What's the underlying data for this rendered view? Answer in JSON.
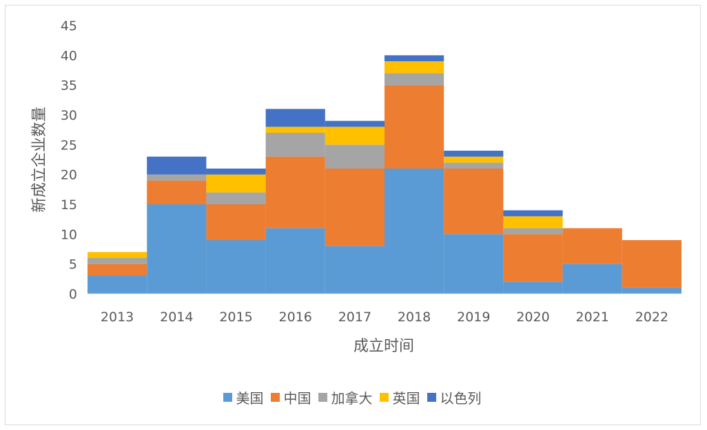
{
  "chart_data": {
    "type": "bar",
    "stacked": true,
    "categories": [
      "2013",
      "2014",
      "2015",
      "2016",
      "2017",
      "2018",
      "2019",
      "2020",
      "2021",
      "2022"
    ],
    "series": [
      {
        "name": "美国",
        "color": "#5b9bd5",
        "values": [
          3,
          15,
          9,
          11,
          8,
          21,
          10,
          2,
          5,
          1
        ]
      },
      {
        "name": "中国",
        "color": "#ed7d31",
        "values": [
          2,
          4,
          6,
          12,
          13,
          14,
          11,
          8,
          6,
          8
        ]
      },
      {
        "name": "加拿大",
        "color": "#a5a5a5",
        "values": [
          1,
          1,
          2,
          4,
          4,
          2,
          1,
          1,
          0,
          0
        ]
      },
      {
        "name": "英国",
        "color": "#ffc000",
        "values": [
          1,
          0,
          3,
          1,
          3,
          2,
          1,
          2,
          0,
          0
        ]
      },
      {
        "name": "以色列",
        "color": "#4472c4",
        "values": [
          0,
          3,
          1,
          3,
          1,
          1,
          1,
          1,
          0,
          0
        ]
      }
    ],
    "xlabel": "成立时间",
    "ylabel": "新成立企业数量",
    "ylim": [
      0,
      45
    ],
    "yticks": [
      0,
      5,
      10,
      15,
      20,
      25,
      30,
      35,
      40,
      45
    ],
    "grid": false,
    "legend_position": "bottom"
  }
}
